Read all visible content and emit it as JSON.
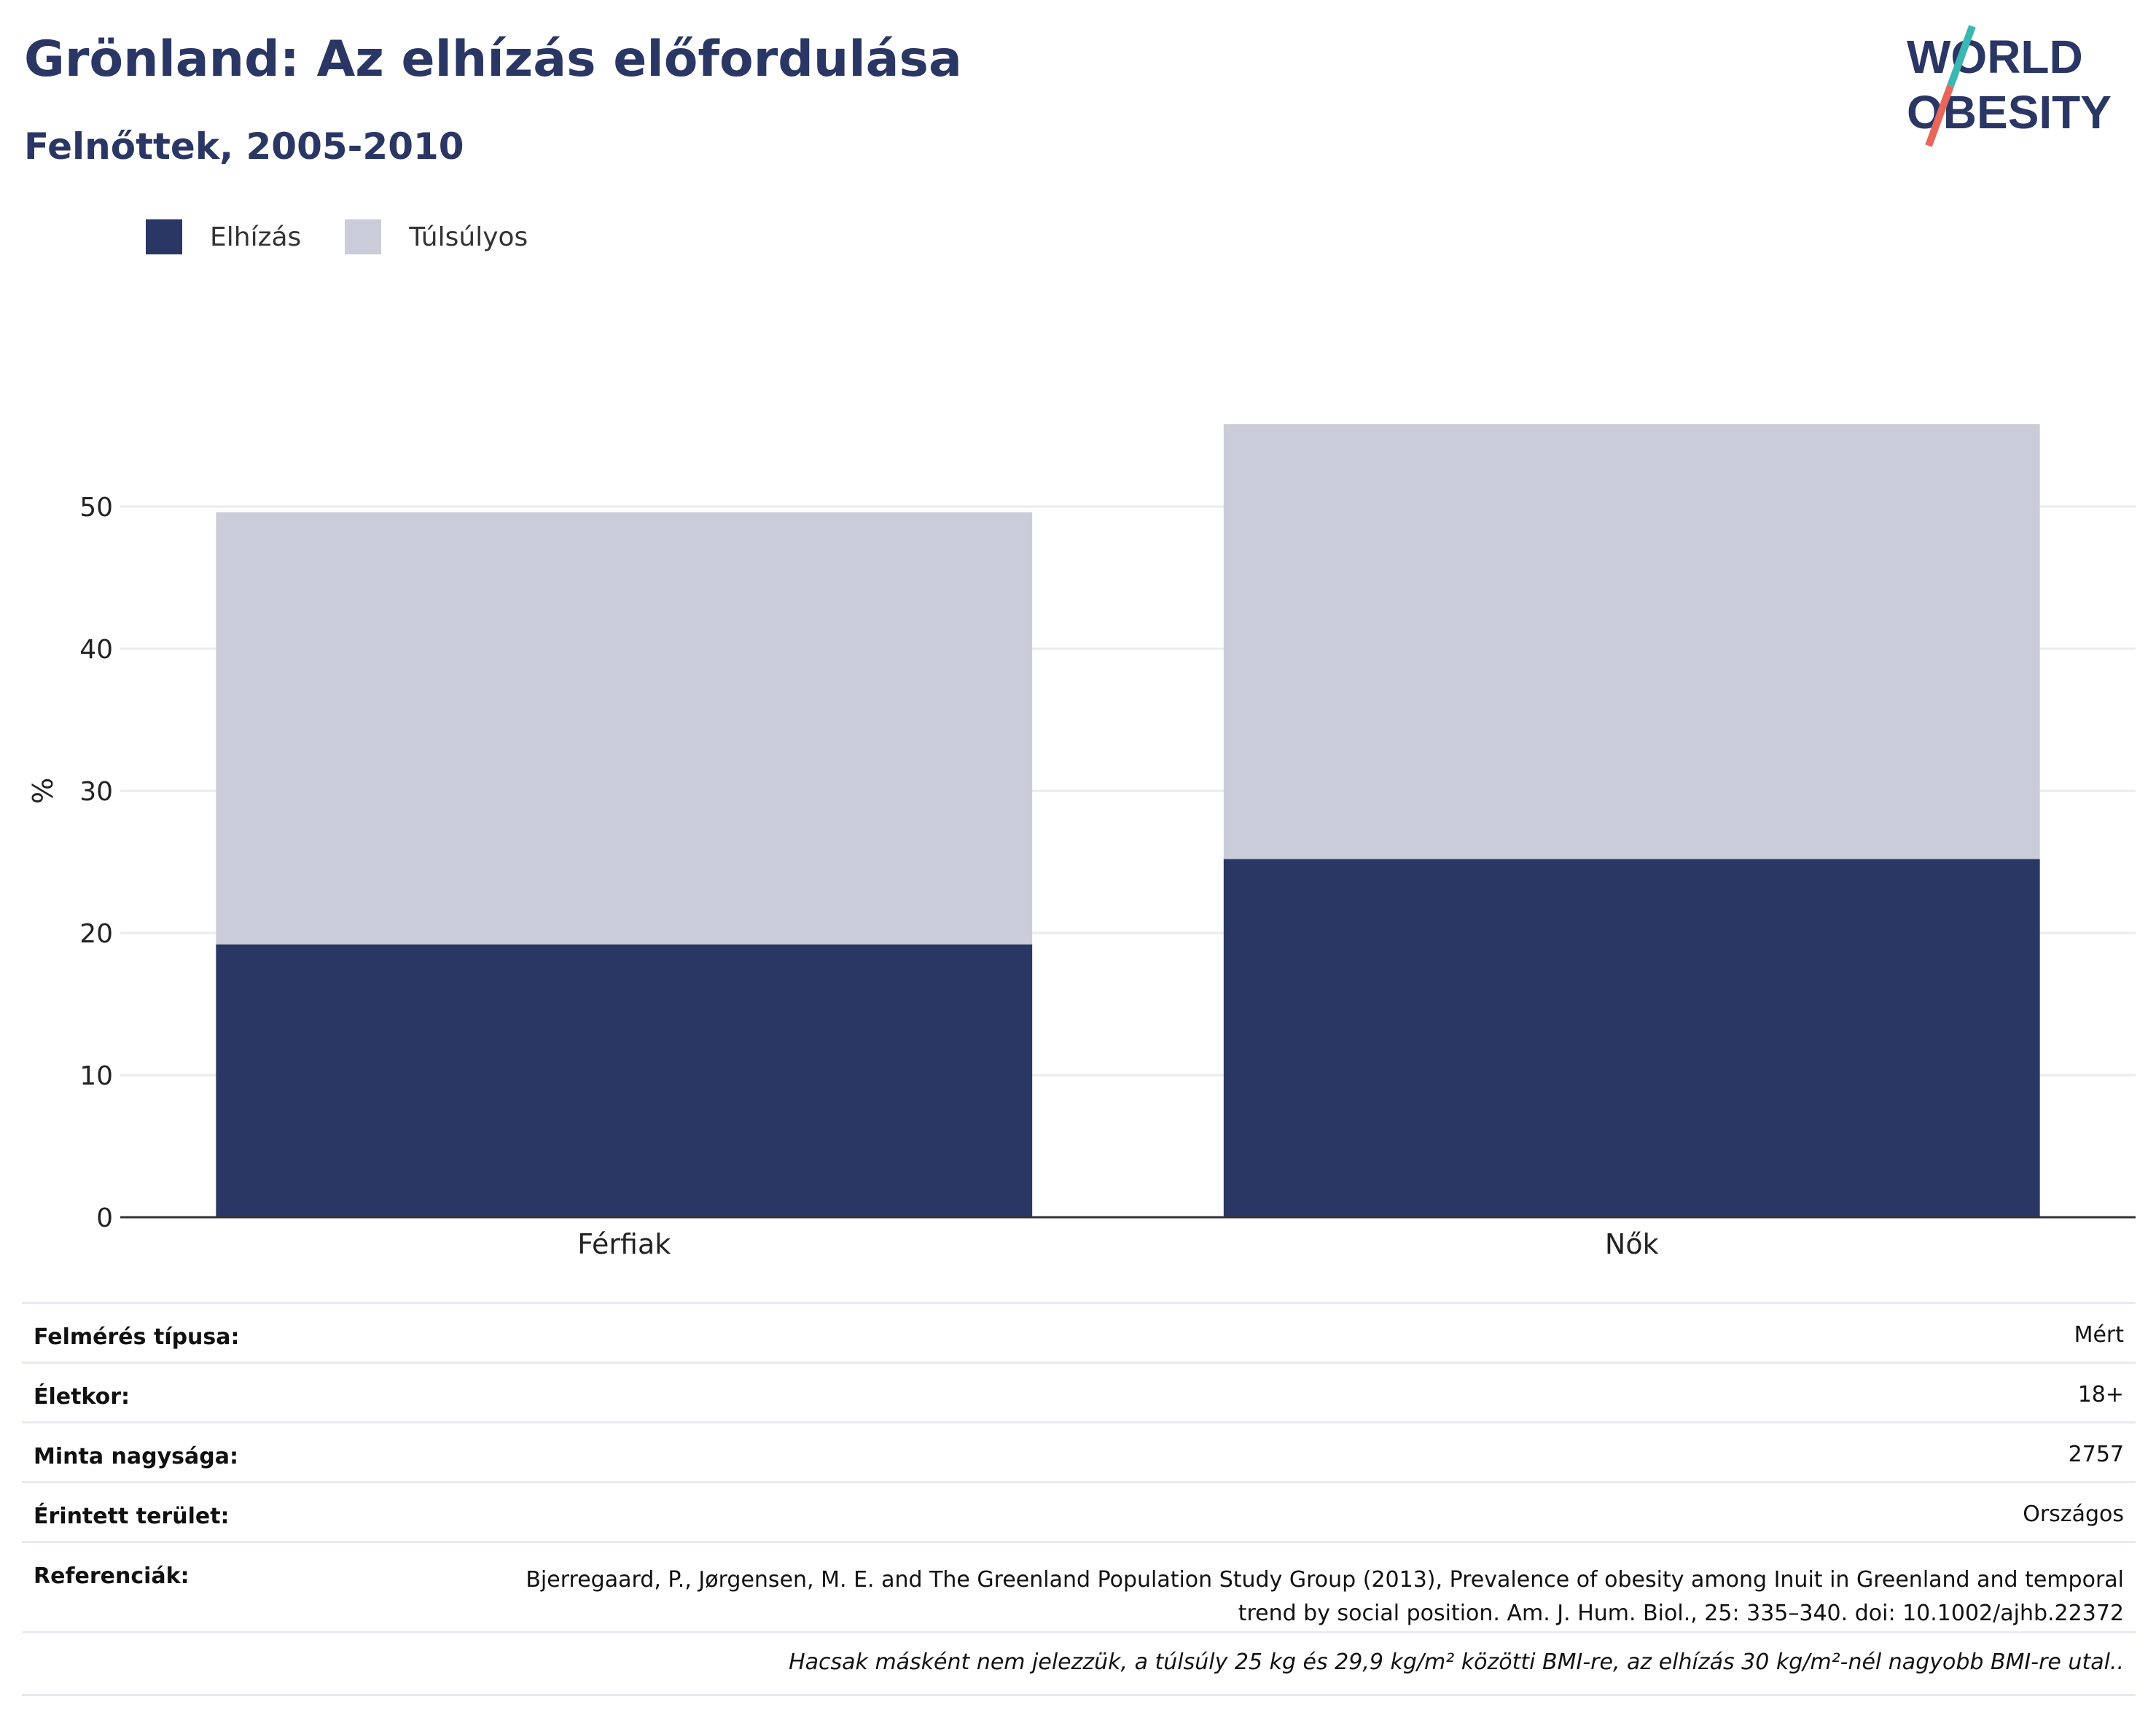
{
  "header": {
    "title": "Grönland: Az elhízás előfordulása",
    "subtitle": "Felnőttek, 2005-2010"
  },
  "logo": {
    "line1": "WORLD",
    "line2": "OBESITY",
    "colors": {
      "text": "#2a3664",
      "slash_top": "#3bb7b3",
      "slash_bottom": "#e8665a"
    }
  },
  "colors": {
    "obesity": "#2a3664",
    "overweight": "#cacdd9",
    "grid": "#ebebeb",
    "axis": "#333333"
  },
  "chart_data": {
    "type": "bar",
    "stacked": true,
    "categories": [
      "Férfiak",
      "Nők"
    ],
    "series": [
      {
        "name": "Elhízás",
        "values": [
          19.2,
          25.2
        ],
        "color": "#2a3664"
      },
      {
        "name": "Túlsúlyos",
        "values": [
          30.4,
          30.6
        ],
        "color": "#cacdd9"
      }
    ],
    "ylabel": "%",
    "ylim": [
      0,
      60
    ],
    "yticks": [
      0,
      10,
      20,
      30,
      40,
      50
    ],
    "grid": true,
    "legend_position": "top-left"
  },
  "meta": {
    "rows": [
      {
        "label": "Felmérés típusa:",
        "value": "Mért"
      },
      {
        "label": "Életkor:",
        "value": "18+"
      },
      {
        "label": "Minta nagysága:",
        "value": "2757"
      },
      {
        "label": "Érintett terület:",
        "value": "Országos"
      },
      {
        "label": "Referenciák:",
        "value": "Bjerregaard, P., Jørgensen, M. E. and The Greenland Population Study Group (2013), Prevalence of obesity among Inuit in Greenland and temporal trend by social position. Am. J. Hum. Biol., 25: 335–340. doi: 10.1002/ajhb.22372"
      }
    ],
    "note": "Hacsak másként nem jelezzük, a túlsúly 25 kg és 29,9 kg/m² közötti BMI-re, az elhízás 30 kg/m²-nél nagyobb BMI-re utal.."
  }
}
